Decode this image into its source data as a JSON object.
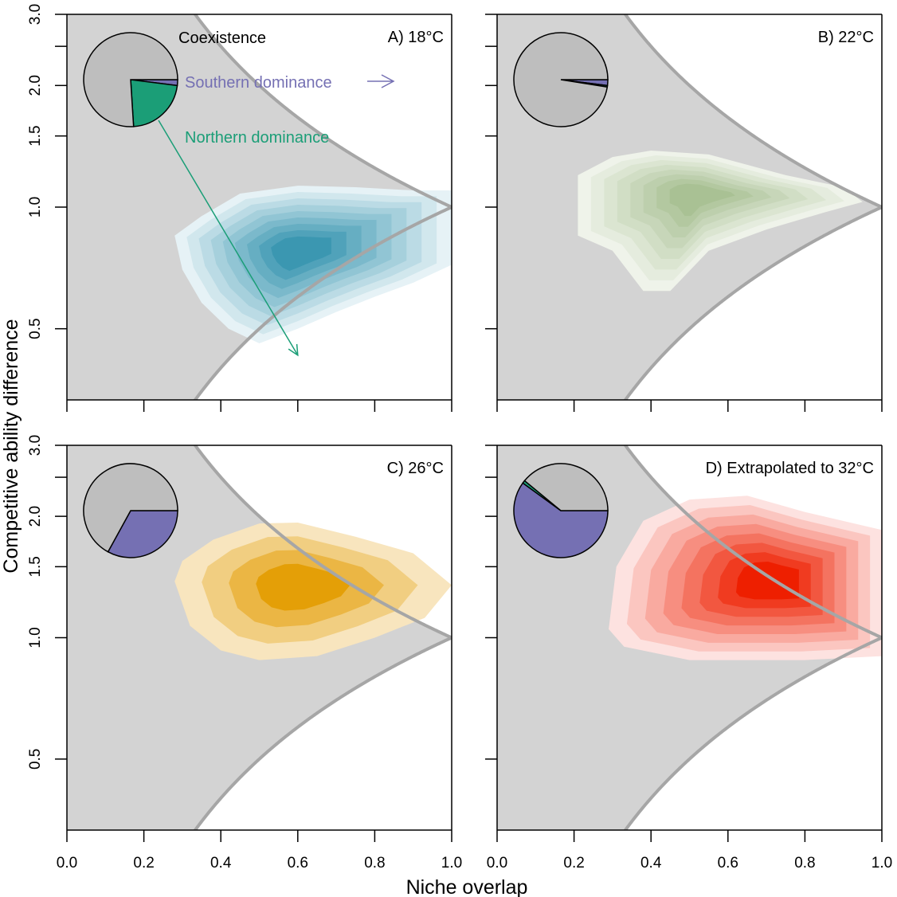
{
  "chart_data": {
    "type": "contour",
    "xlabel": "Niche overlap",
    "ylabel": "Competitive ability difference",
    "xlim": [
      0,
      1
    ],
    "ylim": [
      0.3333,
      3
    ],
    "yscale": "log",
    "xticks": [
      0.0,
      0.2,
      0.4,
      0.6,
      0.8,
      1.0
    ],
    "xtick_labels": [
      "0.0",
      "0.2",
      "0.4",
      "0.6",
      "0.8",
      "1.0"
    ],
    "yticks": [
      0.5,
      1.0,
      1.5,
      2.0,
      2.5,
      3.0
    ],
    "ytick_labels": [
      "0.5",
      "1.0",
      "1.5",
      "2.0",
      "",
      "3.0"
    ],
    "coexistence_region": "niche_overlap < competitive_ability_difference < 1/niche_overlap",
    "colors": {
      "coexistence_fill": "#d3d3d3",
      "boundary": "#a6a6a6",
      "pie_coexistence": "#bebebe",
      "southern": "#7570b3",
      "northern": "#1b9e77"
    },
    "annotations": {
      "coexistence": "Coexistence",
      "southern": "Southern dominance",
      "northern": "Northern dominance"
    },
    "panels": [
      {
        "title": "A) 18°C",
        "color": "#3b97b1",
        "light": "#e6f2f6",
        "levels": 9,
        "density_center": [
          0.6,
          0.78
        ],
        "density_spread": [
          0.19,
          0.3
        ],
        "density_outline": [
          [
            0.28,
            0.85
          ],
          [
            0.35,
            0.95
          ],
          [
            0.45,
            1.08
          ],
          [
            0.6,
            1.13
          ],
          [
            0.75,
            1.12
          ],
          [
            0.9,
            1.1
          ],
          [
            1.0,
            1.1
          ],
          [
            1.0,
            0.72
          ],
          [
            0.9,
            0.65
          ],
          [
            0.8,
            0.6
          ],
          [
            0.7,
            0.55
          ],
          [
            0.6,
            0.5
          ],
          [
            0.5,
            0.46
          ],
          [
            0.42,
            0.5
          ],
          [
            0.35,
            0.58
          ],
          [
            0.3,
            0.7
          ]
        ],
        "pie": {
          "southern": 0.02,
          "northern": 0.22,
          "coexistence": 0.76
        }
      },
      {
        "title": "B) 22°C",
        "color": "#a9c194",
        "light": "#eff3ea",
        "levels": 8,
        "density_center": [
          0.52,
          1.08
        ],
        "density_spread": [
          0.2,
          0.3
        ],
        "density_outline": [
          [
            0.21,
            1.2
          ],
          [
            0.3,
            1.33
          ],
          [
            0.4,
            1.38
          ],
          [
            0.55,
            1.35
          ],
          [
            0.75,
            1.2
          ],
          [
            0.9,
            1.12
          ],
          [
            0.95,
            1.03
          ],
          [
            0.85,
            0.97
          ],
          [
            0.7,
            0.88
          ],
          [
            0.55,
            0.78
          ],
          [
            0.45,
            0.62
          ],
          [
            0.38,
            0.62
          ],
          [
            0.3,
            0.78
          ],
          [
            0.21,
            0.85
          ]
        ],
        "pie": {
          "southern": 0.02,
          "northern": 0.005,
          "coexistence": 0.975
        }
      },
      {
        "title": "C) 26°C",
        "color": "#e49f07",
        "light": "#f8e5be",
        "levels": 4,
        "density_center": [
          0.6,
          1.35
        ],
        "density_spread": [
          0.23,
          0.3
        ],
        "density_outline": [
          [
            0.28,
            1.38
          ],
          [
            0.3,
            1.55
          ],
          [
            0.38,
            1.75
          ],
          [
            0.5,
            1.92
          ],
          [
            0.6,
            1.93
          ],
          [
            0.75,
            1.78
          ],
          [
            0.9,
            1.62
          ],
          [
            1.0,
            1.35
          ],
          [
            0.93,
            1.12
          ],
          [
            0.8,
            1.0
          ],
          [
            0.65,
            0.9
          ],
          [
            0.5,
            0.88
          ],
          [
            0.4,
            0.93
          ],
          [
            0.32,
            1.07
          ]
        ],
        "pie": {
          "southern": 0.33,
          "northern": 0.0,
          "coexistence": 0.67
        }
      },
      {
        "title": "D) Extrapolated to 32°C",
        "color": "#ee1f00",
        "light": "#fde2e0",
        "levels": 8,
        "density_center": [
          0.72,
          1.38
        ],
        "density_spread": [
          0.23,
          0.3
        ],
        "density_outline": [
          [
            0.29,
            1.05
          ],
          [
            0.31,
            1.5
          ],
          [
            0.38,
            1.95
          ],
          [
            0.5,
            2.2
          ],
          [
            0.65,
            2.25
          ],
          [
            0.8,
            2.05
          ],
          [
            1.0,
            1.85
          ],
          [
            1.0,
            0.9
          ],
          [
            0.8,
            0.88
          ],
          [
            0.5,
            0.88
          ],
          [
            0.33,
            0.95
          ]
        ],
        "pie": {
          "southern": 0.6,
          "northern": 0.01,
          "coexistence": 0.39
        }
      }
    ]
  }
}
